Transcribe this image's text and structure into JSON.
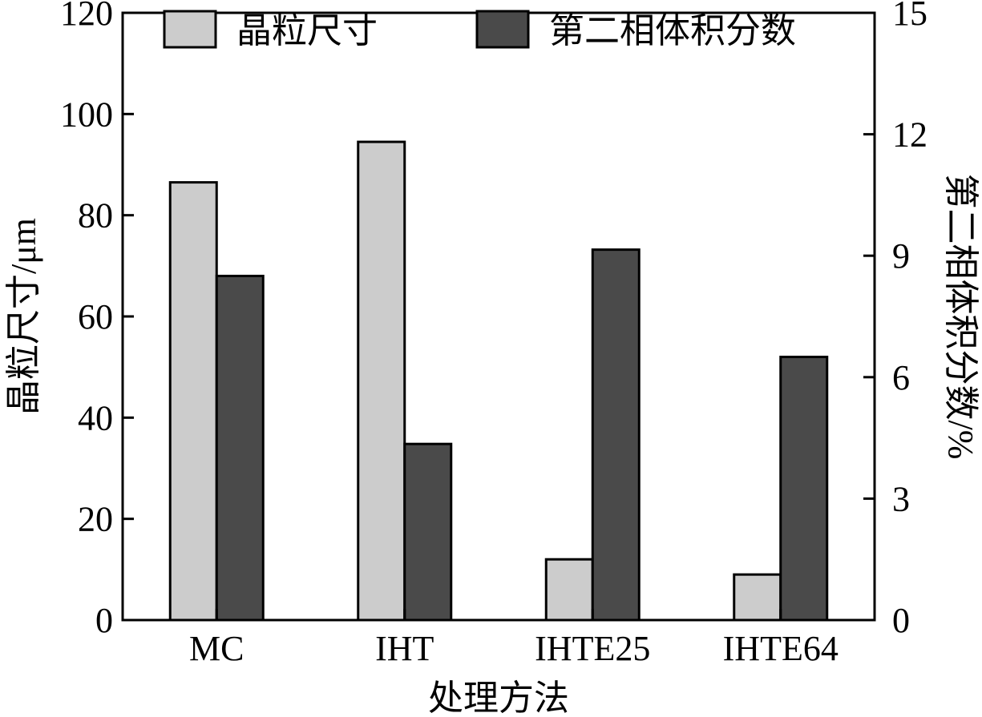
{
  "chart_data": {
    "type": "bar",
    "categories": [
      "MC",
      "IHT",
      "IHTE25",
      "IHTE64"
    ],
    "series": [
      {
        "name": "晶粒尺寸",
        "axis": "left",
        "values": [
          86.5,
          94.5,
          12,
          9
        ]
      },
      {
        "name": "第二相体积分数",
        "axis": "right",
        "values": [
          8.5,
          4.35,
          9.15,
          6.5
        ]
      }
    ],
    "xlabel": "处理方法",
    "ylabel": "晶粒尺寸/μm",
    "y2label": "第二相体积分数/%",
    "ylim": [
      0,
      120
    ],
    "y2lim": [
      0,
      15
    ],
    "yticks": [
      "0",
      "20",
      "40",
      "60",
      "80",
      "100",
      "120"
    ],
    "y2ticks": [
      "0",
      "3",
      "6",
      "9",
      "12",
      "15"
    ],
    "grid": false,
    "legend_position": "top",
    "colors": {
      "series1": "#cccccc",
      "series2": "#4a4a4a",
      "stroke": "#000000"
    }
  }
}
